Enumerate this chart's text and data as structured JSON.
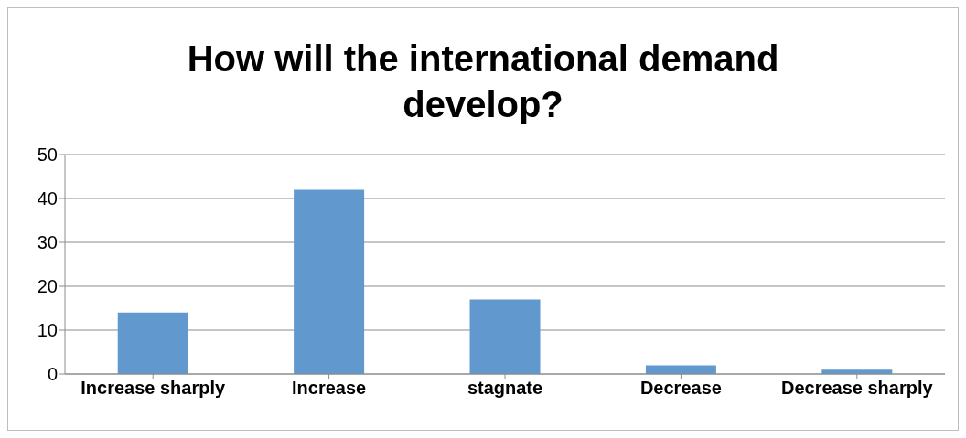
{
  "chart_data": {
    "type": "bar",
    "title": "How will the international demand develop?",
    "categories": [
      "Increase sharply",
      "Increase",
      "stagnate",
      "Decrease",
      "Decrease sharply"
    ],
    "values": [
      14,
      42,
      17,
      2,
      1
    ],
    "color": "#6198cd",
    "ylim": [
      0,
      50
    ],
    "yticks": [
      0,
      10,
      20,
      30,
      40,
      50
    ],
    "grid": "y"
  }
}
